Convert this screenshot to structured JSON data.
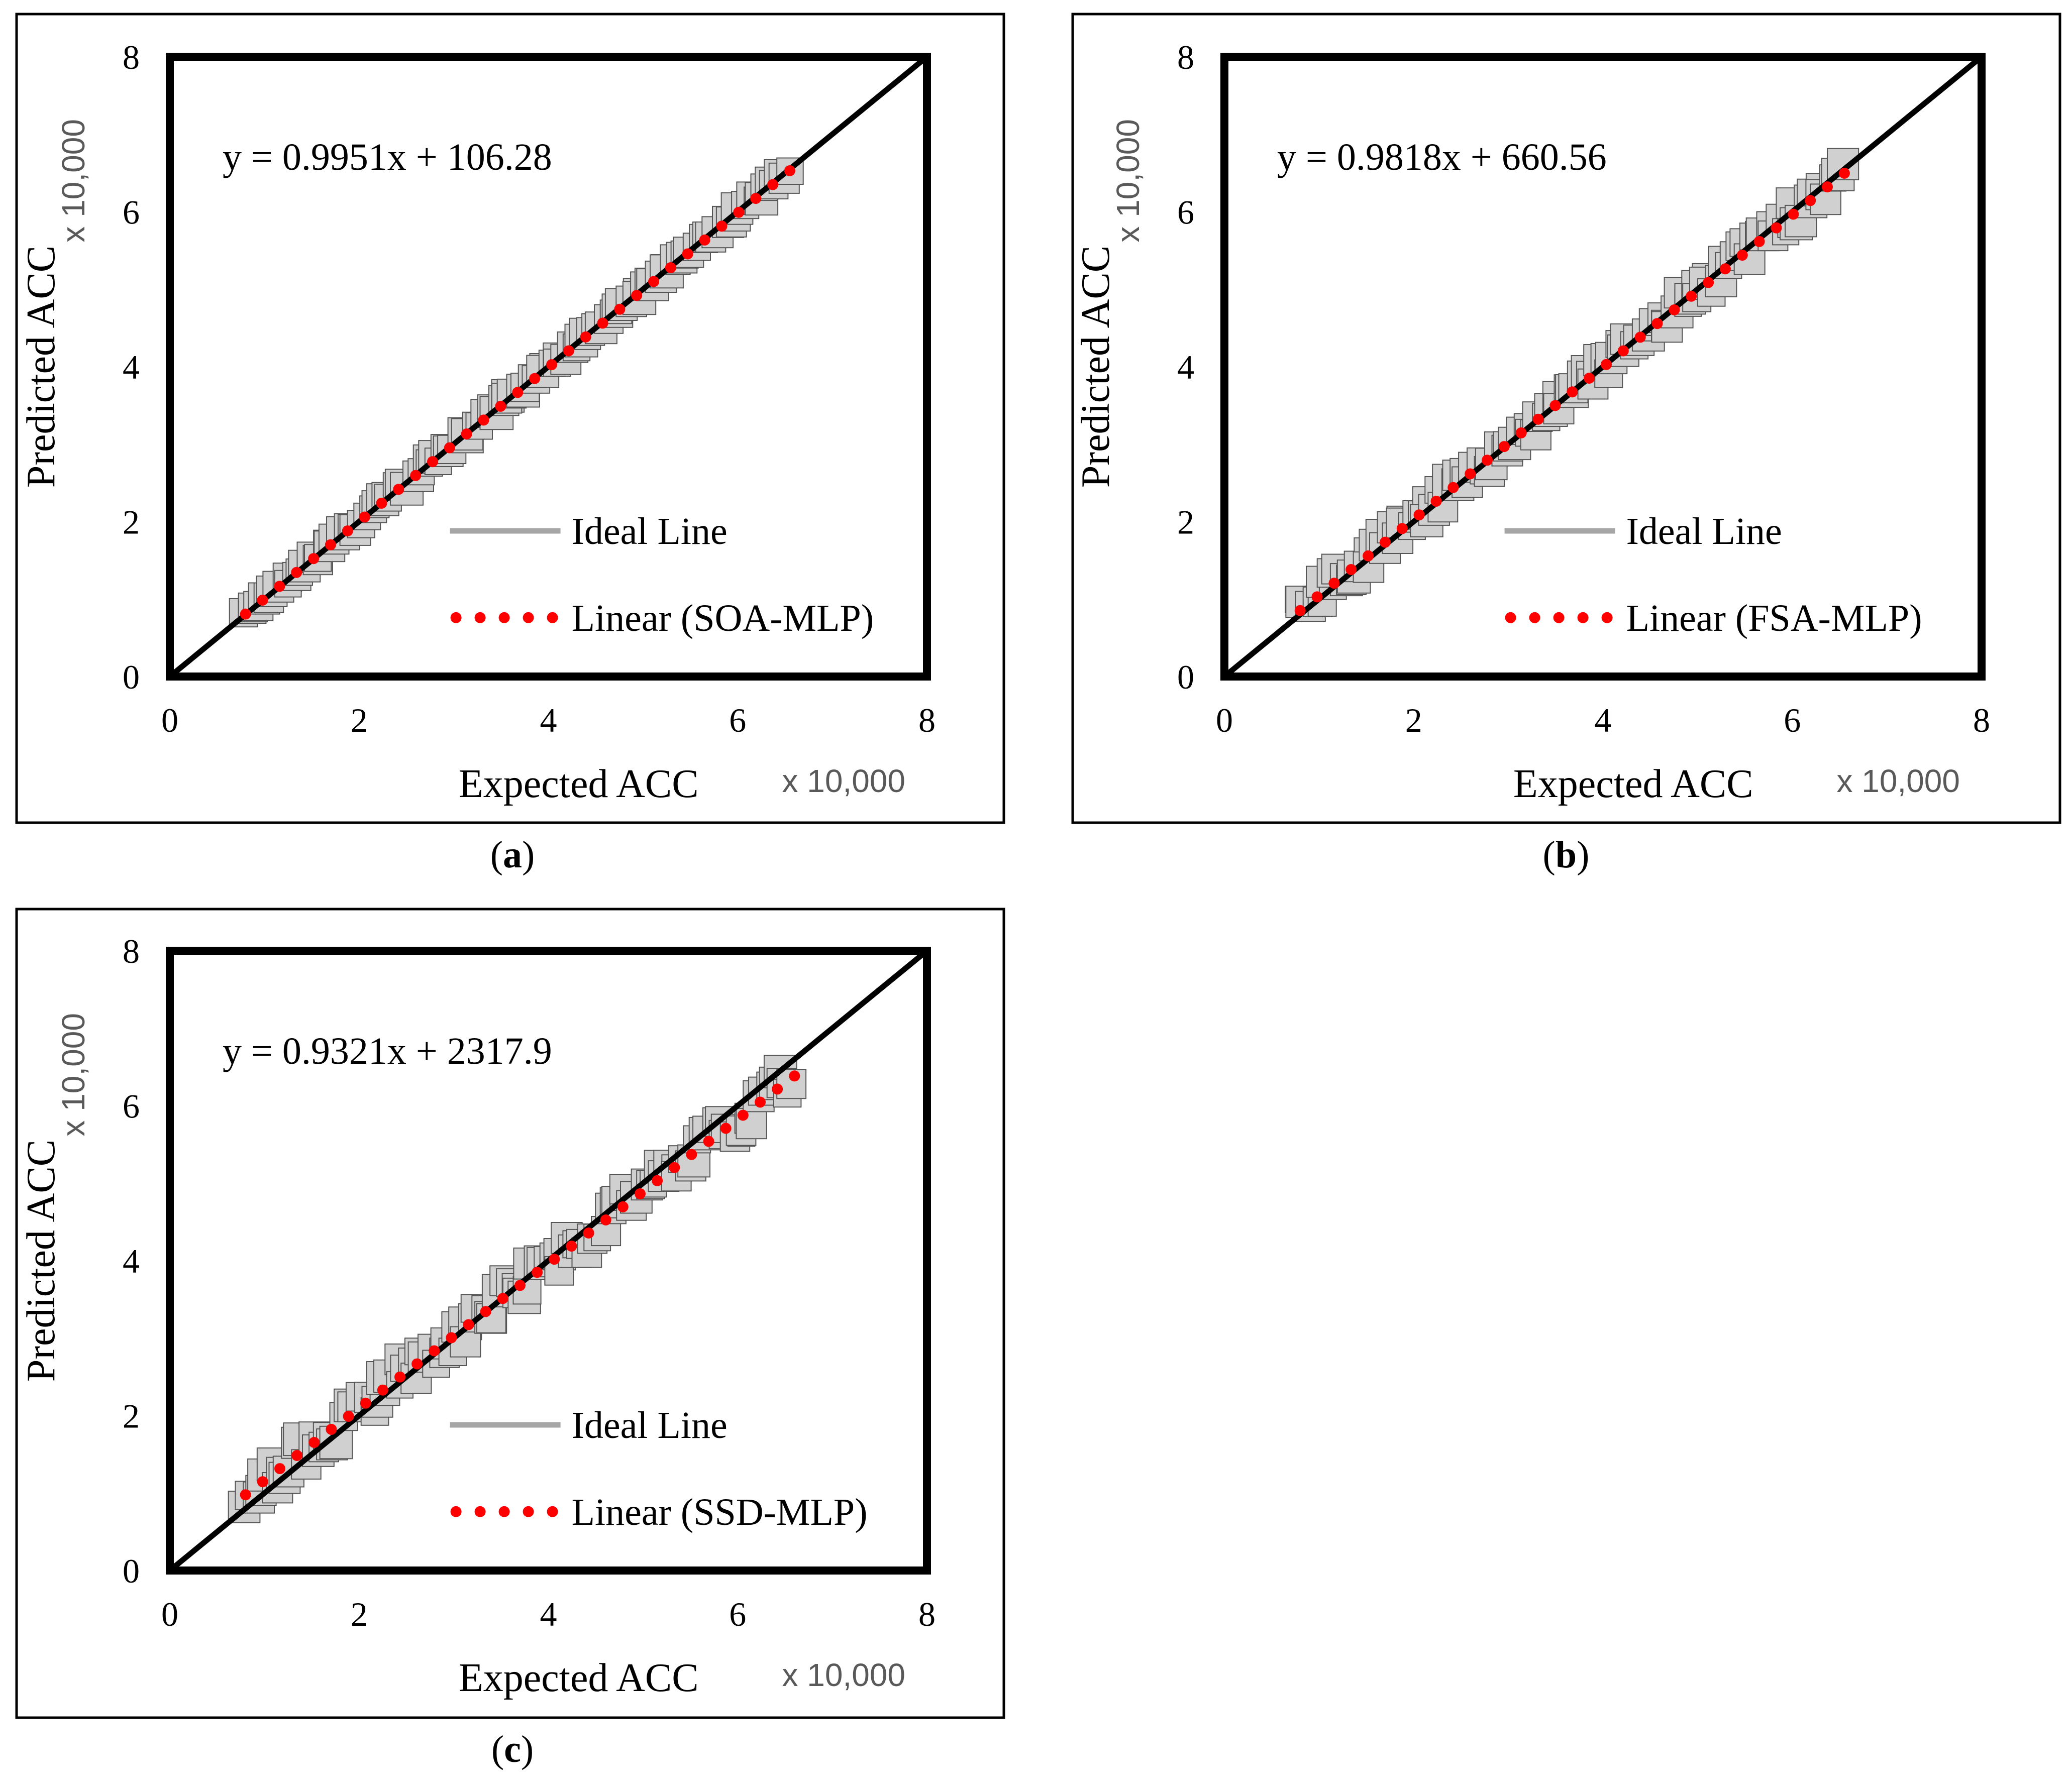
{
  "colors": {
    "ideal_line": "#000000",
    "legend_ideal": "#a6a6a6",
    "trend": "#ff0000",
    "marker_fill": "#d0d0d0",
    "marker_stroke": "#555555",
    "multiplier_text": "#595959"
  },
  "chart_data": [
    {
      "type": "scatter",
      "panel_label": "a",
      "xlabel": "Expected ACC",
      "ylabel": "Predicted ACC",
      "x_multiplier": "x 10,000",
      "y_multiplier": "x 10,000",
      "xlim": [
        0,
        8
      ],
      "ylim": [
        0,
        8
      ],
      "xticks": [
        "0",
        "2",
        "4",
        "6",
        "8"
      ],
      "yticks": [
        "0",
        "2",
        "4",
        "6",
        "8"
      ],
      "equation": "y = 0.9951x + 106.28",
      "slope": 0.9951,
      "intercept": 106.28,
      "scale": 10000,
      "legend": {
        "ideal": "Ideal Line",
        "trend": "Linear (SOA-MLP)"
      },
      "x_range": [
        0.8,
        6.55
      ],
      "n_points": 110,
      "scatter_spread": 0.06
    },
    {
      "type": "scatter",
      "panel_label": "b",
      "xlabel": "Expected ACC",
      "ylabel": "Predicted ACC",
      "x_multiplier": "x 10,000",
      "y_multiplier": "x 10,000",
      "xlim": [
        0,
        8
      ],
      "ylim": [
        0,
        8
      ],
      "xticks": [
        "0",
        "2",
        "4",
        "6",
        "8"
      ],
      "yticks": [
        "0",
        "2",
        "4",
        "6",
        "8"
      ],
      "equation": "y = 0.9818x + 660.56",
      "slope": 0.9818,
      "intercept": 660.56,
      "scale": 10000,
      "legend": {
        "ideal": "Ideal Line",
        "trend": "Linear (FSA-MLP)"
      },
      "x_range": [
        0.8,
        6.55
      ],
      "n_points": 110,
      "scatter_spread": 0.16
    },
    {
      "type": "scatter",
      "panel_label": "c",
      "xlabel": "Expected ACC",
      "ylabel": "Predicted ACC",
      "x_multiplier": "x 10,000",
      "y_multiplier": "x 10,000",
      "xlim": [
        0,
        8
      ],
      "ylim": [
        0,
        8
      ],
      "xticks": [
        "0",
        "2",
        "4",
        "6",
        "8"
      ],
      "yticks": [
        "0",
        "2",
        "4",
        "6",
        "8"
      ],
      "equation": "y = 0.9321x + 2317.9",
      "slope": 0.9321,
      "intercept": 2317.9,
      "scale": 10000,
      "legend": {
        "ideal": "Ideal Line",
        "trend": "Linear (SSD-MLP)"
      },
      "x_range": [
        0.8,
        6.6
      ],
      "n_points": 110,
      "scatter_spread": 0.22
    }
  ]
}
